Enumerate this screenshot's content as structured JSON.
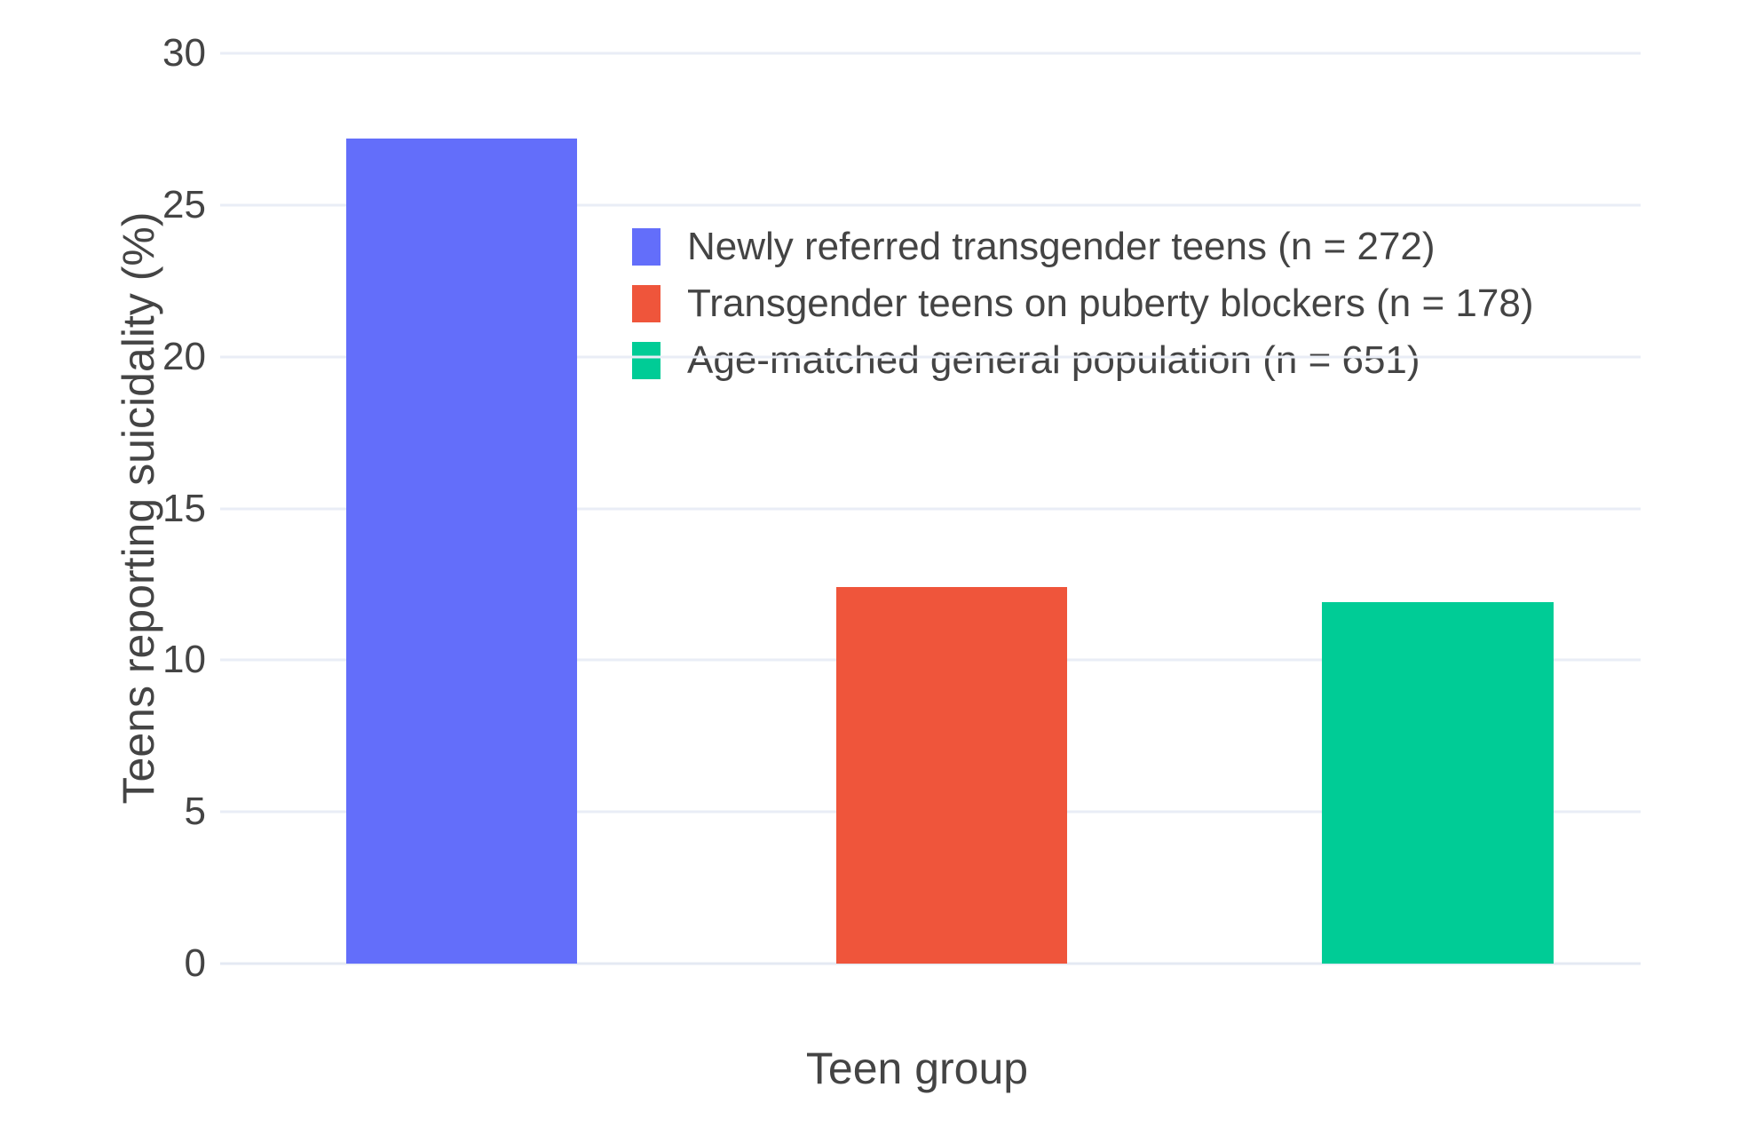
{
  "chart_data": {
    "type": "bar",
    "title": "",
    "xlabel": "Teen group",
    "ylabel": "Teens reporting suicidality (%)",
    "categories": [
      "Newly referred transgender teens (n = 272)",
      "Transgender teens on puberty blockers (n = 178)",
      "Age-matched general population (n = 651)"
    ],
    "values": [
      27.2,
      12.4,
      11.9
    ],
    "bar_colors": [
      "#636EFA",
      "#EF553B",
      "#00CC96"
    ],
    "ylim": [
      0,
      30
    ],
    "yticks": [
      0,
      5,
      10,
      15,
      20,
      25,
      30
    ],
    "grid": true,
    "legend_position": "inside-top-left",
    "legend": {
      "items": [
        {
          "label": "Newly referred transgender teens (n = 272)",
          "color": "#636EFA"
        },
        {
          "label": "Transgender teens on puberty blockers (n = 178)",
          "color": "#EF553B"
        },
        {
          "label": "Age-matched general population (n = 651)",
          "color": "#00CC96"
        }
      ]
    },
    "colors": {
      "background": "#FFFFFF",
      "grid": "#E9EDF6",
      "zero_line": "#E4E9F3",
      "text": "#444444"
    }
  }
}
